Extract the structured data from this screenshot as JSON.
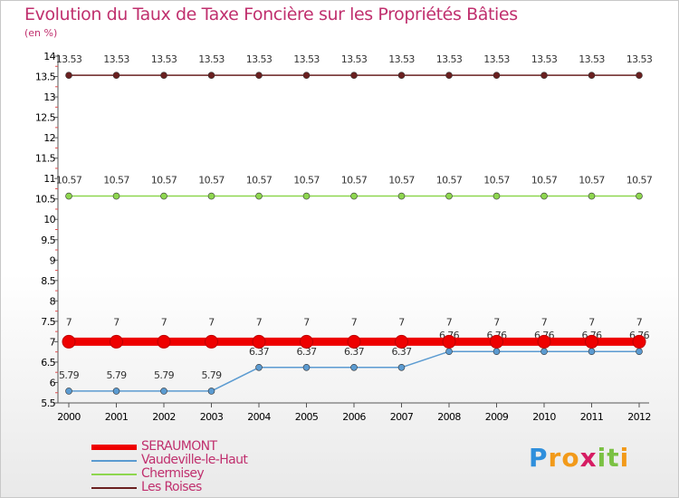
{
  "colors": {
    "SERAUMONT": "#ee0000",
    "Vaudeville-le-Haut": "#5b9bd1",
    "Chermisey": "#8ed64f",
    "Les Roises": "#6a2020"
  },
  "chart_data": {
    "type": "line",
    "title": "Evolution du Taux de Taxe Foncière sur les Propriétés Bâties",
    "subtitle": "(en %)",
    "categories": [
      "2000",
      "2001",
      "2002",
      "2003",
      "2004",
      "2005",
      "2006",
      "2007",
      "2008",
      "2009",
      "2010",
      "2011",
      "2012"
    ],
    "ylim": [
      5.5,
      14
    ],
    "yticks": [
      "5.5",
      "6",
      "6.5",
      "7",
      "7.5",
      "8",
      "8.5",
      "9",
      "9.5",
      "10",
      "10.5",
      "11",
      "11.5",
      "12",
      "12.5",
      "13",
      "13.5",
      "14"
    ],
    "series": [
      {
        "name": "Les Roises",
        "values": [
          13.53,
          13.53,
          13.53,
          13.53,
          13.53,
          13.53,
          13.53,
          13.53,
          13.53,
          13.53,
          13.53,
          13.53,
          13.53
        ],
        "labels": [
          "13.53",
          "13.53",
          "13.53",
          "13.53",
          "13.53",
          "13.53",
          "13.53",
          "13.53",
          "13.53",
          "13.53",
          "13.53",
          "13.53",
          "13.53"
        ]
      },
      {
        "name": "Chermisey",
        "values": [
          10.57,
          10.57,
          10.57,
          10.57,
          10.57,
          10.57,
          10.57,
          10.57,
          10.57,
          10.57,
          10.57,
          10.57,
          10.57
        ],
        "labels": [
          "10.57",
          "10.57",
          "10.57",
          "10.57",
          "10.57",
          "10.57",
          "10.57",
          "10.57",
          "10.57",
          "10.57",
          "10.57",
          "10.57",
          "10.57"
        ]
      },
      {
        "name": "Vaudeville-le-Haut",
        "values": [
          5.79,
          5.79,
          5.79,
          5.79,
          6.37,
          6.37,
          6.37,
          6.37,
          6.76,
          6.76,
          6.76,
          6.76,
          6.76
        ],
        "labels": [
          "5.79",
          "5.79",
          "5.79",
          "5.79",
          "6.37",
          "6.37",
          "6.37",
          "6.37",
          "6.76",
          "6.76",
          "6.76",
          "6.76",
          "6.76"
        ]
      },
      {
        "name": "SERAUMONT",
        "values": [
          7,
          7,
          7,
          7,
          7,
          7,
          7,
          7,
          7,
          7,
          7,
          7,
          7
        ],
        "labels": [
          "7",
          "7",
          "7",
          "7",
          "7",
          "7",
          "7",
          "7",
          "7",
          "7",
          "7",
          "7",
          "7"
        ]
      }
    ],
    "legend": [
      "SERAUMONT",
      "Vaudeville-le-Haut",
      "Chermisey",
      "Les Roises"
    ],
    "legend_position": "bottom-left",
    "grid": false
  },
  "logo": {
    "text": "Proxiti",
    "letters": [
      "P",
      "r",
      "o",
      "x",
      "i",
      "t",
      "i"
    ],
    "letter_colors": [
      "#2f8fdc",
      "#f29a1a",
      "#f29a1a",
      "#d61d63",
      "#7bc143",
      "#7bc143",
      "#f29a1a"
    ]
  }
}
